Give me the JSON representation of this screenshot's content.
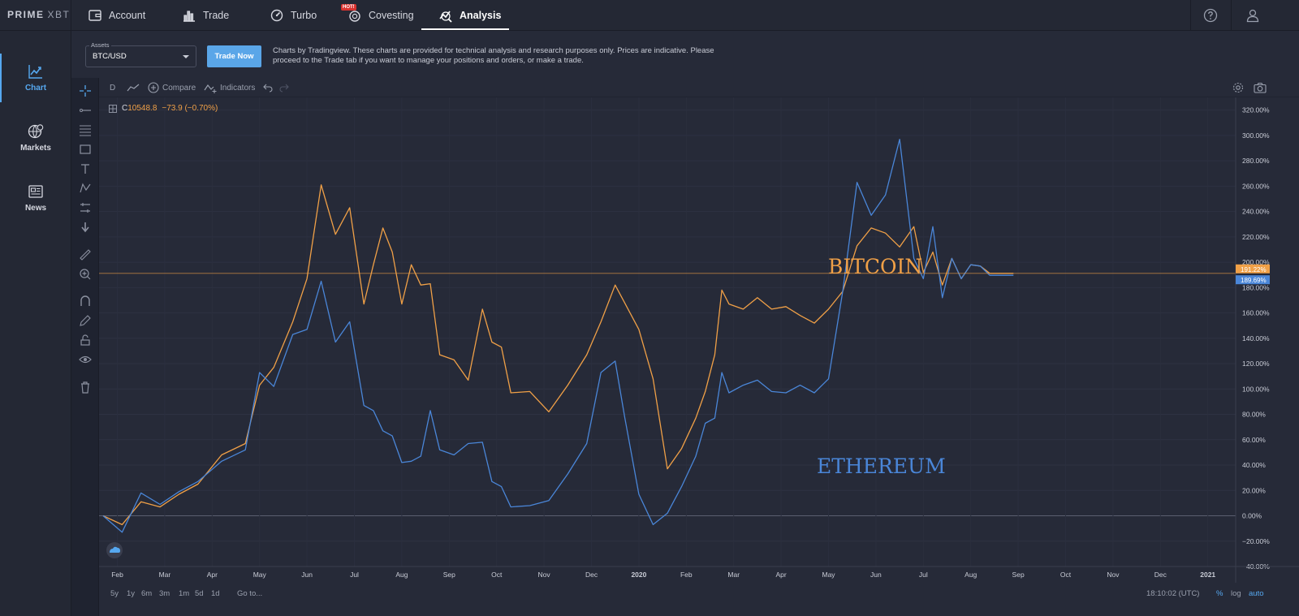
{
  "brand": {
    "name": "PRIME",
    "suffix": "XBT"
  },
  "nav": {
    "items": [
      {
        "label": "Account",
        "icon": "wallet-icon"
      },
      {
        "label": "Trade",
        "icon": "bar-chart-icon"
      },
      {
        "label": "Turbo",
        "icon": "turbo-icon"
      },
      {
        "label": "Covesting",
        "icon": "covesting-icon",
        "badge": "HOT!"
      },
      {
        "label": "Analysis",
        "icon": "analysis-icon",
        "active": true
      }
    ],
    "help_icon": "help-icon",
    "user_icon": "user-icon"
  },
  "sidebar": {
    "items": [
      {
        "label": "Chart",
        "icon": "chart-icon",
        "active": true
      },
      {
        "label": "Markets",
        "icon": "globe-icon"
      },
      {
        "label": "News",
        "icon": "news-icon"
      }
    ]
  },
  "assets": {
    "label": "Assets",
    "selected": "BTC/USD",
    "trade_button": "Trade Now",
    "disclaimer": "Charts by Tradingview. These charts are provided for technical analysis and research purposes only. Prices are indicative. Please proceed to the Trade tab if you want to manage your positions and orders, or make a trade."
  },
  "chart_toolbar": {
    "interval": "D",
    "compare": "Compare",
    "indicators": "Indicators"
  },
  "legend": {
    "close_label": "C",
    "close_value": "10548.8",
    "change": "−73.9 (−0.70%)"
  },
  "bottom": {
    "ranges": [
      "5y",
      "1y",
      "6m",
      "3m",
      "1m",
      "5d",
      "1d"
    ],
    "goto": "Go to...",
    "clock": "18:10:02 (UTC)",
    "percent": "%",
    "log": "log",
    "auto": "auto"
  },
  "colors": {
    "bitcoin": "#f0a047",
    "ethereum": "#4a86d8",
    "accent": "#56a8f0",
    "background": "#262a38"
  },
  "chart_data": {
    "type": "line",
    "title": "",
    "x_ticks": [
      "Feb",
      "Mar",
      "Apr",
      "May",
      "Jun",
      "Jul",
      "Aug",
      "Sep",
      "Oct",
      "Nov",
      "Dec",
      "2020",
      "Feb",
      "Mar",
      "Apr",
      "May",
      "Jun",
      "Jul",
      "Aug",
      "Sep",
      "Oct",
      "Nov",
      "Dec",
      "2021"
    ],
    "y_ticks": [
      "320.00%",
      "300.00%",
      "280.00%",
      "260.00%",
      "240.00%",
      "220.00%",
      "200.00%",
      "180.00%",
      "160.00%",
      "140.00%",
      "120.00%",
      "100.00%",
      "80.00%",
      "60.00%",
      "40.00%",
      "20.00%",
      "0.00%",
      "−20.00%",
      "−40.00%"
    ],
    "ylim": [
      -40,
      330
    ],
    "annotations": [
      {
        "text": "BITCOIN",
        "color": "#f0a047"
      },
      {
        "text": "ETHEREUM",
        "color": "#4a86d8"
      }
    ],
    "last_values": {
      "bitcoin": "191.22%",
      "ethereum": "189.69%"
    },
    "series": [
      {
        "name": "Bitcoin",
        "color": "#f0a047",
        "x": [
          0,
          0.4,
          0.8,
          1.2,
          1.6,
          2.0,
          2.5,
          3.0,
          3.3,
          3.6,
          4.0,
          4.3,
          4.6,
          4.9,
          5.2,
          5.5,
          5.7,
          5.9,
          6.1,
          6.3,
          6.5,
          6.7,
          6.9,
          7.1,
          7.4,
          7.7,
          8.0,
          8.2,
          8.4,
          8.6,
          9.0,
          9.4,
          9.8,
          10.2,
          10.5,
          10.8,
          11.0,
          11.3,
          11.6,
          11.9,
          12.2,
          12.5,
          12.7,
          12.9,
          13.05,
          13.2,
          13.5,
          13.8,
          14.1,
          14.4,
          14.7,
          15.0,
          15.3,
          15.6,
          15.9,
          16.2,
          16.5,
          16.8,
          17.1,
          17.3,
          17.5,
          17.7,
          17.9,
          18.1,
          18.3,
          18.5,
          18.7,
          18.9,
          19.05,
          19.2
        ],
        "values": [
          0,
          -4,
          8,
          10,
          14,
          28,
          45,
          60,
          100,
          120,
          150,
          190,
          258,
          225,
          240,
          170,
          195,
          230,
          205,
          170,
          195,
          185,
          180,
          130,
          120,
          110,
          160,
          140,
          130,
          100,
          95,
          85,
          100,
          130,
          150,
          185,
          165,
          150,
          105,
          40,
          50,
          80,
          95,
          130,
          175,
          170,
          160,
          175,
          160,
          168,
          155,
          155,
          160,
          180,
          210,
          230,
          220,
          215,
          225,
          195,
          205,
          185,
          200,
          190,
          195,
          200,
          191.22,
          191.22,
          191.22,
          191.22
        ]
      },
      {
        "name": "Ethereum",
        "color": "#4a86d8",
        "x": [
          0,
          0.4,
          0.8,
          1.2,
          1.6,
          2.0,
          2.5,
          3.0,
          3.3,
          3.6,
          4.0,
          4.3,
          4.6,
          4.9,
          5.2,
          5.5,
          5.7,
          5.9,
          6.1,
          6.3,
          6.5,
          6.7,
          6.9,
          7.1,
          7.4,
          7.7,
          8.0,
          8.2,
          8.4,
          8.6,
          9.0,
          9.4,
          9.8,
          10.2,
          10.5,
          10.8,
          11.0,
          11.3,
          11.6,
          11.9,
          12.2,
          12.5,
          12.7,
          12.9,
          13.05,
          13.2,
          13.5,
          13.8,
          14.1,
          14.4,
          14.7,
          15.0,
          15.3,
          15.6,
          15.9,
          16.2,
          16.5,
          16.8,
          17.1,
          17.3,
          17.5,
          17.7,
          17.9,
          18.1,
          18.3,
          18.5,
          18.7,
          18.9,
          19.05,
          19.2
        ],
        "values": [
          0,
          -10,
          15,
          12,
          16,
          30,
          40,
          55,
          110,
          105,
          140,
          150,
          182,
          140,
          150,
          90,
          80,
          70,
          60,
          45,
          40,
          50,
          80,
          55,
          45,
          60,
          55,
          30,
          20,
          10,
          5,
          15,
          30,
          60,
          110,
          125,
          75,
          20,
          -10,
          5,
          20,
          50,
          70,
          80,
          110,
          100,
          100,
          110,
          95,
          100,
          100,
          100,
          105,
          180,
          260,
          240,
          250,
          300,
          200,
          190,
          225,
          175,
          200,
          190,
          195,
          200,
          189.69,
          189.69,
          189.69,
          189.69
        ]
      }
    ]
  }
}
